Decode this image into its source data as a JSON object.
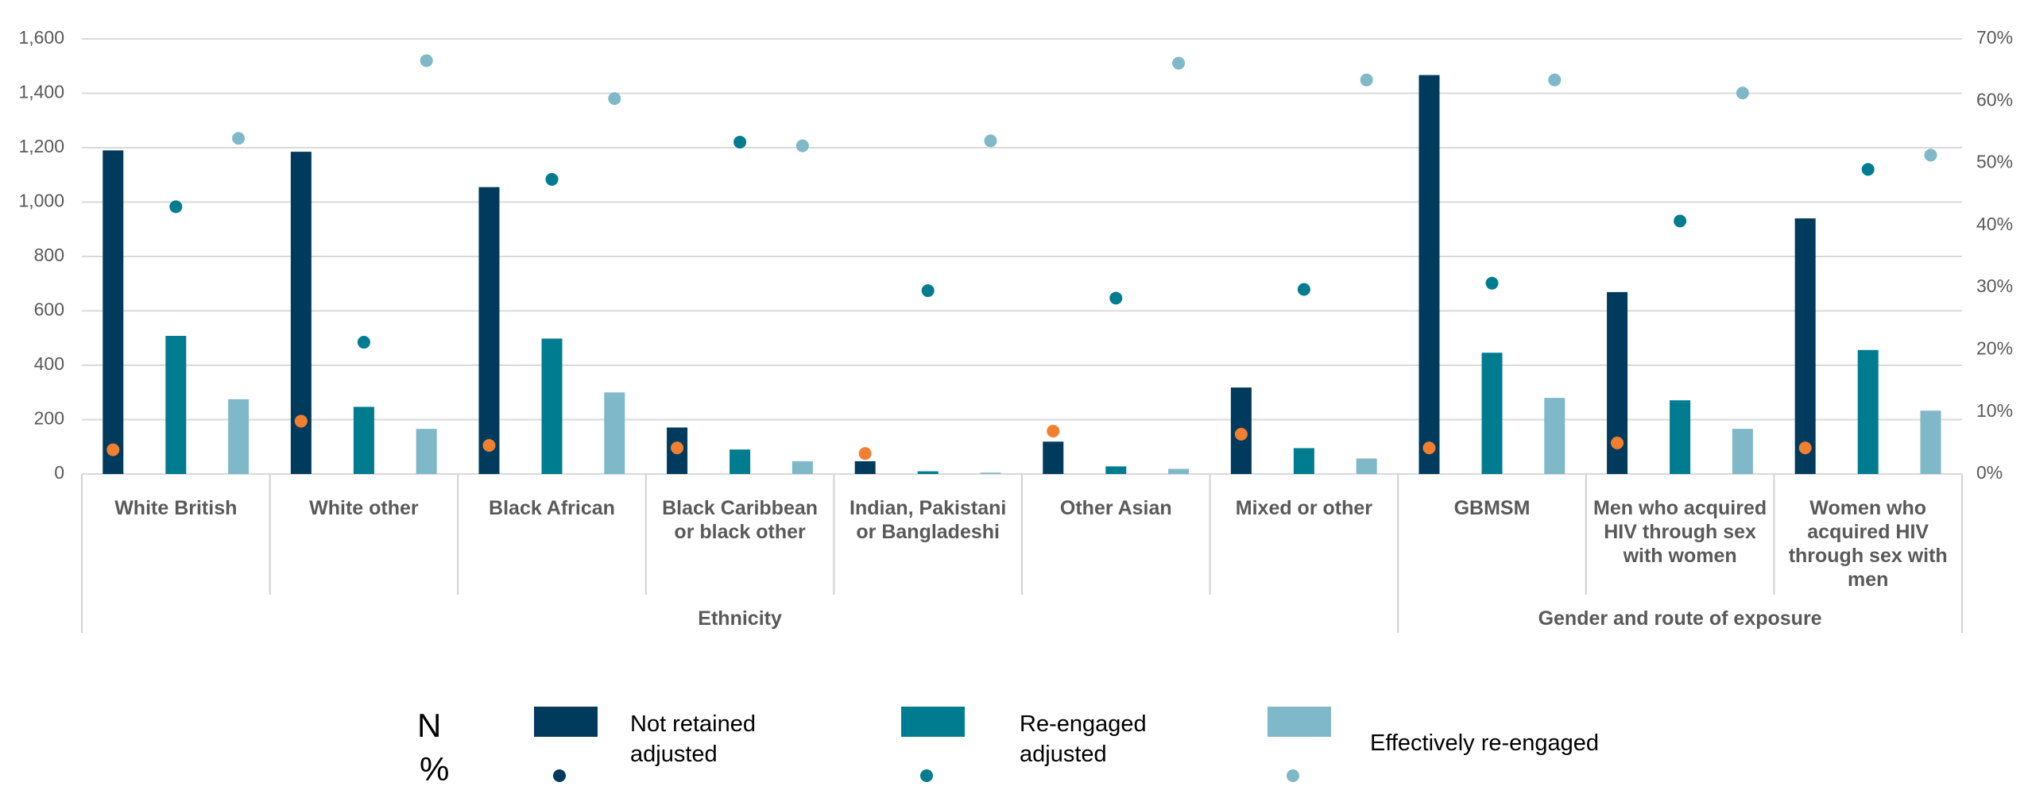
{
  "chart_data": {
    "type": "bar",
    "groups": [
      {
        "label": "Ethnicity",
        "categories": [
          "White British",
          "White other",
          "Black African",
          "Black Caribbean or black other",
          "Indian, Pakistani or Bangladeshi",
          "Other Asian",
          "Mixed or other"
        ]
      },
      {
        "label": "Gender and route of exposure",
        "categories": [
          "GBMSM",
          "Men who acquired HIV through sex with women",
          "Women who acquired HIV through sex with men"
        ]
      }
    ],
    "legend_rows": [
      "N",
      "%"
    ],
    "series": [
      {
        "name": "Not retained adjusted",
        "color": "#003a5d",
        "pct_color": "#f08030",
        "values": [
          1190,
          1185,
          1055,
          171,
          47,
          119,
          318,
          1467,
          669,
          940
        ],
        "pct_values": [
          3.9,
          8.5,
          4.6,
          4.2,
          3.3,
          6.9,
          6.4,
          4.2,
          5.0,
          4.2
        ]
      },
      {
        "name": "Re-engaged adjusted",
        "color": "#007c91",
        "pct_color": "#007c91",
        "values": [
          508,
          247,
          498,
          90,
          10,
          28,
          95,
          446,
          271,
          456
        ],
        "pct_values": [
          43.0,
          21.2,
          47.4,
          53.4,
          29.5,
          28.3,
          29.7,
          30.7,
          40.7,
          49.0
        ]
      },
      {
        "name": "Effectively re-engaged",
        "color": "#7fb8c8",
        "pct_color": "#7fb8c8",
        "values": [
          275,
          166,
          300,
          47,
          5,
          19,
          57,
          280,
          166,
          233
        ],
        "pct_values": [
          54.0,
          66.5,
          60.4,
          52.8,
          53.6,
          66.1,
          63.4,
          63.4,
          61.3,
          51.3
        ]
      }
    ],
    "ylim": [
      0,
      1600
    ],
    "yticks": [
      0,
      200,
      400,
      600,
      800,
      {
        "value": 1000,
        "label": "1,000"
      },
      {
        "value": 1200,
        "label": "1,200"
      },
      {
        "value": 1400,
        "label": "1,400"
      },
      {
        "value": 1600,
        "label": "1,600"
      }
    ],
    "y2lim": [
      0,
      70
    ],
    "y2ticks": [
      {
        "value": 0,
        "label": "0%"
      },
      {
        "value": 10,
        "label": "10%"
      },
      {
        "value": 20,
        "label": "20%"
      },
      {
        "value": 30,
        "label": "30%"
      },
      {
        "value": 40,
        "label": "40%"
      },
      {
        "value": 50,
        "label": "50%"
      },
      {
        "value": 60,
        "label": "60%"
      },
      {
        "value": 70,
        "label": "70%"
      }
    ],
    "grid": true
  }
}
